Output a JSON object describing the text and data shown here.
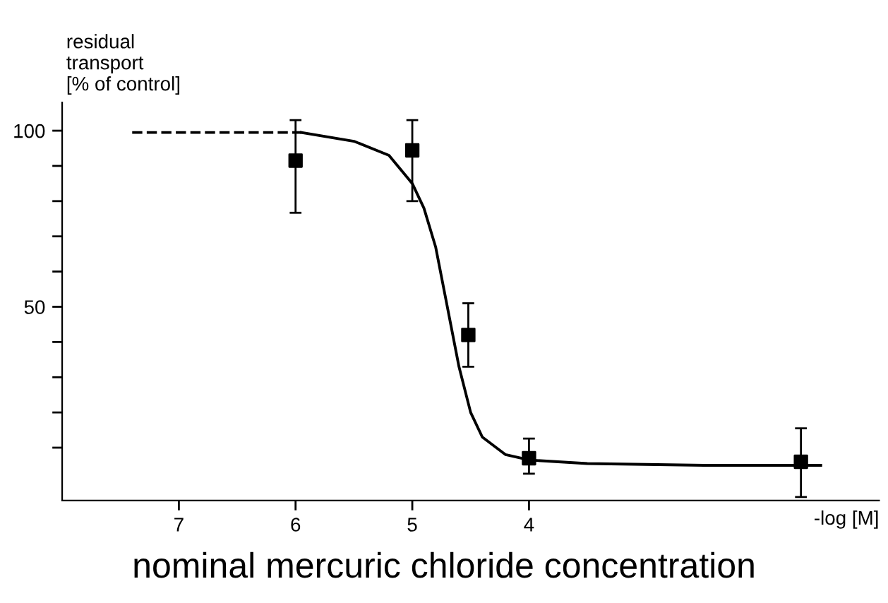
{
  "chart_data": {
    "type": "scatter",
    "xlabel": "-log [M]",
    "ylabel": "residual\ntransport\n[% of control]",
    "annotations": [
      "nominal mercuric chloride concentration"
    ],
    "xlim": [
      8.0,
      1.0
    ],
    "xticks": [
      7,
      6,
      5,
      4
    ],
    "ylim": [
      -5,
      108
    ],
    "yticks": [
      {
        "value": 10,
        "label": null
      },
      {
        "value": 20,
        "label": null
      },
      {
        "value": 30,
        "label": null
      },
      {
        "value": 40,
        "label": null
      },
      50,
      {
        "value": 60,
        "label": null
      },
      {
        "value": 70,
        "label": null
      },
      {
        "value": 80,
        "label": null
      },
      {
        "value": 90,
        "label": null
      },
      100
    ],
    "grid": false,
    "legend": false,
    "series": [
      {
        "color": "#000000",
        "marker": "square",
        "x": [
          6,
          5,
          4.52,
          4,
          1.67
        ],
        "values": [
          91.5,
          94.4,
          42,
          7,
          6
        ],
        "errors": [
          [
            76.7,
            103
          ],
          [
            80,
            103
          ],
          [
            33,
            51
          ],
          [
            2.6,
            12.6
          ],
          [
            -4,
            15.5
          ]
        ]
      },
      {
        "type": "line",
        "color": "#000000",
        "line_style": "dashed",
        "x": [
          7.4,
          5.95
        ],
        "values": [
          99.5,
          99.5
        ]
      },
      {
        "type": "line",
        "color": "#000000",
        "line_style": "solid",
        "x": [
          5.95,
          5.5,
          5.2,
          5.0,
          4.9,
          4.8,
          4.7,
          4.6,
          4.5,
          4.4,
          4.2,
          4.0,
          3.5,
          2.5,
          1.5
        ],
        "values": [
          99.5,
          97,
          93,
          85,
          78,
          67,
          50,
          33,
          20,
          13,
          8,
          6.5,
          5.5,
          5,
          5
        ]
      }
    ]
  }
}
